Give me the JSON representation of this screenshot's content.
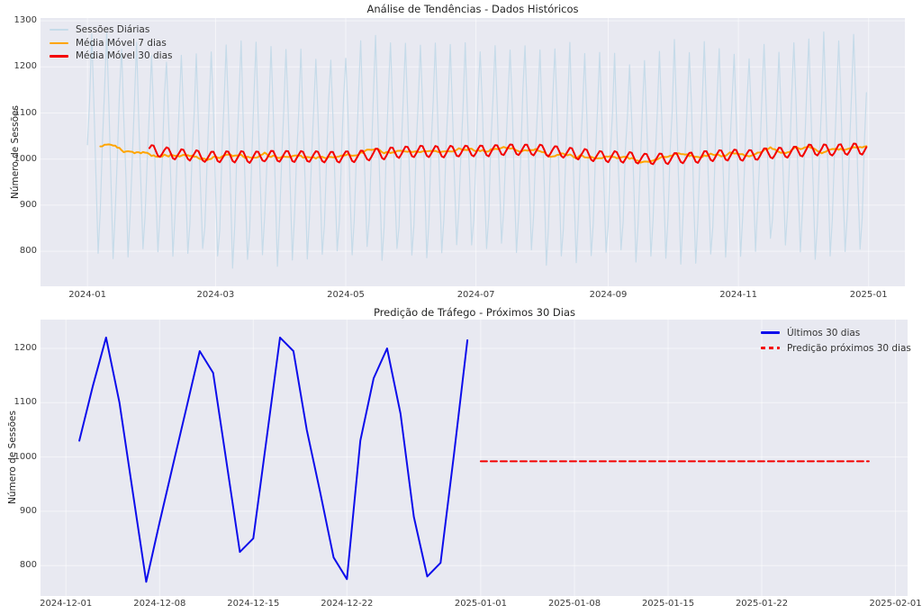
{
  "figure": {
    "background": "#ffffff",
    "panel_background": "#e8e9f1",
    "grid_color": "rgba(255,255,255,0.55)",
    "text_color": "#262626"
  },
  "chart_data": [
    {
      "type": "line",
      "key": "historical",
      "title": "Análise de Tendências - Dados Históricos",
      "xlabel": "",
      "ylabel": "Número de Sessões",
      "grid": true,
      "legend_position": "upper left",
      "x_tick_labels": [
        "2024-01",
        "2024-03",
        "2024-05",
        "2024-07",
        "2024-09",
        "2024-11",
        "2025-01"
      ],
      "x_tick_days": [
        0,
        60,
        121,
        182,
        244,
        305,
        366
      ],
      "y_ticks": [
        800,
        900,
        1000,
        1100,
        1200,
        1300
      ],
      "xlim_days": [
        -22,
        383
      ],
      "ylim": [
        724,
        1306
      ],
      "series": [
        {
          "key": "daily-sessions",
          "name": "Sessões Diárias",
          "color": "#c6dbe9",
          "line_width": 1.2,
          "line_style": "solid",
          "start_date": "2024-01-01",
          "data_synthesis": {
            "days": 366,
            "start_day": 0,
            "weekly_pattern": [
              1010,
              1125,
              1240,
              1100,
              945,
              795,
              870
            ],
            "noise_amplitude": 18,
            "seasonal_modulation": 0.05,
            "slow_shift_amplitude": 10
          },
          "observed_value_range": [
            755,
            1285
          ]
        },
        {
          "key": "moving-average-7d",
          "name": "Média Móvel 7 dias",
          "color": "#ffa500",
          "line_width": 2,
          "line_style": "solid",
          "derived_from": "moving_average",
          "window": 7,
          "observed_value_range": [
            975,
            1040
          ]
        },
        {
          "key": "moving-average-30d",
          "name": "Média Móvel 30 dias",
          "color": "#f40000",
          "line_width": 2,
          "line_style": "solid",
          "derived_from": "moving_average",
          "window": 30,
          "observed_value_range": [
            985,
            1025
          ]
        }
      ]
    },
    {
      "type": "line",
      "key": "prediction",
      "title": "Predição de Tráfego - Próximos 30 Dias",
      "xlabel": "",
      "ylabel": "Número de Sessões",
      "grid": true,
      "legend_position": "upper right",
      "x_tick_labels": [
        "2024-12-01",
        "2024-12-08",
        "2024-12-15",
        "2024-12-22",
        "2025-01-01",
        "2025-01-08",
        "2025-01-15",
        "2025-01-22",
        "2025-02-01"
      ],
      "x_tick_days": [
        0,
        7,
        14,
        21,
        31,
        38,
        45,
        52,
        62
      ],
      "y_ticks": [
        800,
        900,
        1000,
        1100,
        1200
      ],
      "xlim_days": [
        -1.9,
        62.9
      ],
      "ylim": [
        744,
        1253
      ],
      "series": [
        {
          "key": "last-30-days",
          "name": "Últimos 30 dias",
          "color": "#0d0deb",
          "line_width": 2,
          "line_style": "solid",
          "start_day": 1,
          "start_date": "2024-12-02",
          "values": [
            1030,
            1130,
            1220,
            1100,
            935,
            770,
            880,
            985,
            1090,
            1195,
            1155,
            990,
            825,
            850,
            1035,
            1220,
            1195,
            1050,
            935,
            815,
            775,
            1030,
            1145,
            1200,
            1080,
            890,
            780,
            805,
            1005,
            1215
          ]
        },
        {
          "key": "forecast-next-30-days",
          "name": "Predição próximos 30 dias",
          "color": "#f40000",
          "line_width": 2,
          "line_style": "dashed",
          "start_day": 31,
          "start_date": "2025-01-01",
          "values": [
            992,
            992,
            992,
            992,
            992,
            992,
            992,
            992,
            992,
            992,
            992,
            992,
            992,
            992,
            992,
            992,
            992,
            992,
            992,
            992,
            992,
            992,
            992,
            992,
            992,
            992,
            992,
            992,
            992,
            992
          ]
        }
      ]
    }
  ]
}
